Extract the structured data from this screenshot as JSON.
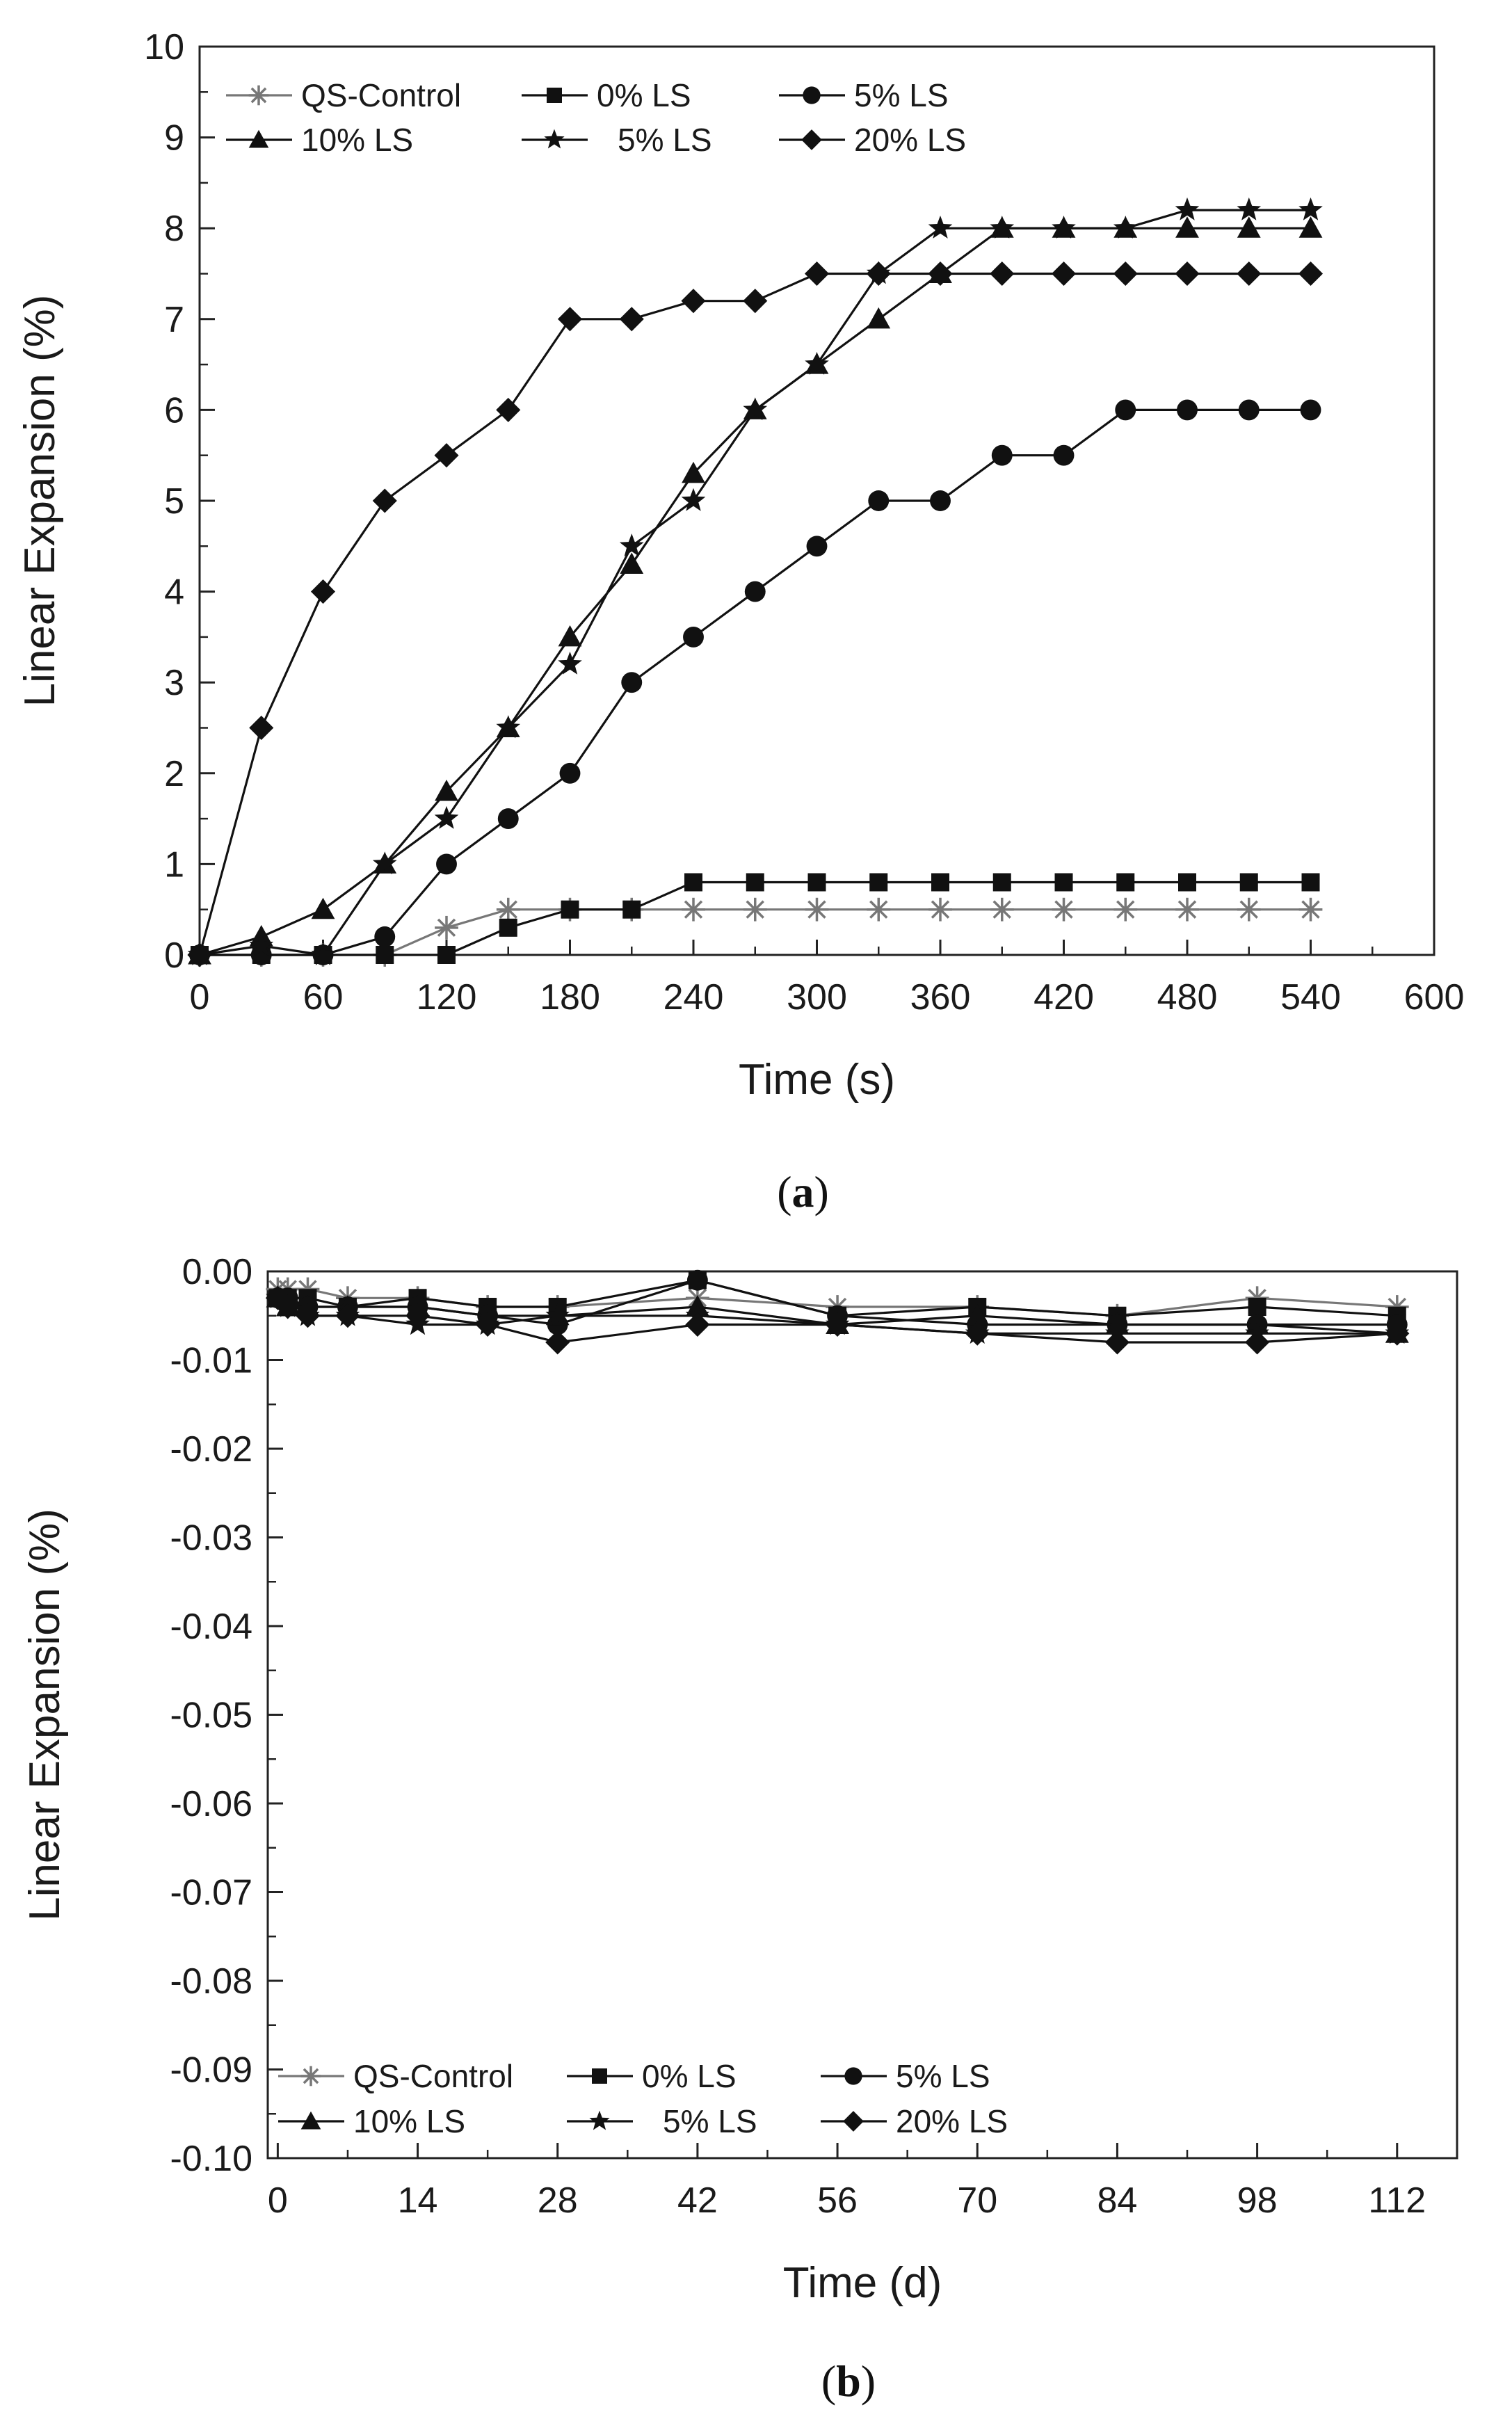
{
  "chart_data": [
    {
      "type": "line",
      "caption_open": "(",
      "caption_letter": "a",
      "caption_close": ")",
      "xlabel": "Time (s)",
      "ylabel": "Linear Expansion (%)",
      "xlim": [
        0,
        600
      ],
      "ylim": [
        0,
        10
      ],
      "xticks": [
        0,
        60,
        120,
        180,
        240,
        300,
        360,
        420,
        480,
        540,
        600
      ],
      "yticks": [
        0,
        1,
        2,
        3,
        4,
        5,
        6,
        7,
        8,
        9,
        10
      ],
      "x": [
        0,
        30,
        60,
        90,
        120,
        150,
        180,
        210,
        240,
        270,
        300,
        330,
        360,
        390,
        420,
        450,
        480,
        510,
        540
      ],
      "series": [
        {
          "name": "QS-Control",
          "marker": "asterisk",
          "color": "#777777",
          "values": [
            0,
            0,
            0,
            0,
            0.3,
            0.5,
            0.5,
            0.5,
            0.5,
            0.5,
            0.5,
            0.5,
            0.5,
            0.5,
            0.5,
            0.5,
            0.5,
            0.5,
            0.5
          ]
        },
        {
          "name": "0% LS",
          "marker": "square",
          "color": "#111111",
          "values": [
            0,
            0,
            0,
            0,
            0,
            0.3,
            0.5,
            0.5,
            0.8,
            0.8,
            0.8,
            0.8,
            0.8,
            0.8,
            0.8,
            0.8,
            0.8,
            0.8,
            0.8
          ]
        },
        {
          "name": "5% LS",
          "marker": "circle",
          "color": "#111111",
          "values": [
            0,
            0,
            0,
            0.2,
            1.0,
            1.5,
            2.0,
            3.0,
            3.5,
            4.0,
            4.5,
            5.0,
            5.0,
            5.5,
            5.5,
            6.0,
            6.0,
            6.0,
            6.0
          ]
        },
        {
          "name": "10% LS",
          "marker": "triangle",
          "color": "#111111",
          "values": [
            0,
            0.2,
            0.5,
            1.0,
            1.8,
            2.5,
            3.5,
            4.3,
            5.3,
            6.0,
            6.5,
            7.0,
            7.5,
            8.0,
            8.0,
            8.0,
            8.0,
            8.0,
            8.0
          ]
        },
        {
          "name": "5% LS",
          "marker": "star",
          "color": "#111111",
          "values": [
            0,
            0.1,
            0,
            1.0,
            1.5,
            2.5,
            3.2,
            4.5,
            5.0,
            6.0,
            6.5,
            7.5,
            8.0,
            8.0,
            8.0,
            8.0,
            8.2,
            8.2,
            8.2
          ]
        },
        {
          "name": "20% LS",
          "marker": "diamond",
          "color": "#111111",
          "values": [
            0,
            2.5,
            4.0,
            5.0,
            5.5,
            6.0,
            7.0,
            7.0,
            7.2,
            7.2,
            7.5,
            7.5,
            7.5,
            7.5,
            7.5,
            7.5,
            7.5,
            7.5,
            7.5
          ]
        }
      ]
    },
    {
      "type": "line",
      "caption_open": "(",
      "caption_letter": "b",
      "caption_close": ")",
      "xlabel": "Time (d)",
      "ylabel": "Linear Expansion (%)",
      "xlim": [
        -1,
        118
      ],
      "ylim": [
        -0.1,
        0.0
      ],
      "xticks": [
        0,
        14,
        28,
        42,
        56,
        70,
        84,
        98,
        112
      ],
      "yticks": [
        0.0,
        -0.01,
        -0.02,
        -0.03,
        -0.04,
        -0.05,
        -0.06,
        -0.07,
        -0.08,
        -0.09,
        -0.1
      ],
      "x": [
        0,
        1,
        3,
        7,
        14,
        21,
        28,
        42,
        56,
        70,
        84,
        98,
        112
      ],
      "series": [
        {
          "name": "QS-Control",
          "marker": "asterisk",
          "color": "#777777",
          "values": [
            -0.002,
            -0.002,
            -0.002,
            -0.003,
            -0.003,
            -0.004,
            -0.004,
            -0.003,
            -0.004,
            -0.004,
            -0.005,
            -0.003,
            -0.004
          ]
        },
        {
          "name": "0% LS",
          "marker": "square",
          "color": "#111111",
          "values": [
            -0.003,
            -0.003,
            -0.003,
            -0.004,
            -0.003,
            -0.004,
            -0.004,
            -0.001,
            -0.005,
            -0.004,
            -0.005,
            -0.004,
            -0.005
          ]
        },
        {
          "name": "5% LS",
          "marker": "circle",
          "color": "#111111",
          "values": [
            -0.003,
            -0.003,
            -0.004,
            -0.004,
            -0.004,
            -0.005,
            -0.006,
            -0.001,
            -0.005,
            -0.006,
            -0.006,
            -0.006,
            -0.006
          ]
        },
        {
          "name": "10% LS",
          "marker": "triangle",
          "color": "#111111",
          "values": [
            -0.003,
            -0.004,
            -0.004,
            -0.004,
            -0.004,
            -0.005,
            -0.005,
            -0.004,
            -0.006,
            -0.005,
            -0.006,
            -0.006,
            -0.007
          ]
        },
        {
          "name": "5% LS",
          "marker": "star",
          "color": "#111111",
          "values": [
            -0.003,
            -0.004,
            -0.005,
            -0.005,
            -0.006,
            -0.006,
            -0.005,
            -0.005,
            -0.006,
            -0.007,
            -0.007,
            -0.007,
            -0.007
          ]
        },
        {
          "name": "20% LS",
          "marker": "diamond",
          "color": "#111111",
          "values": [
            -0.003,
            -0.004,
            -0.005,
            -0.005,
            -0.005,
            -0.006,
            -0.008,
            -0.006,
            -0.006,
            -0.007,
            -0.008,
            -0.008,
            -0.007
          ]
        }
      ]
    }
  ]
}
